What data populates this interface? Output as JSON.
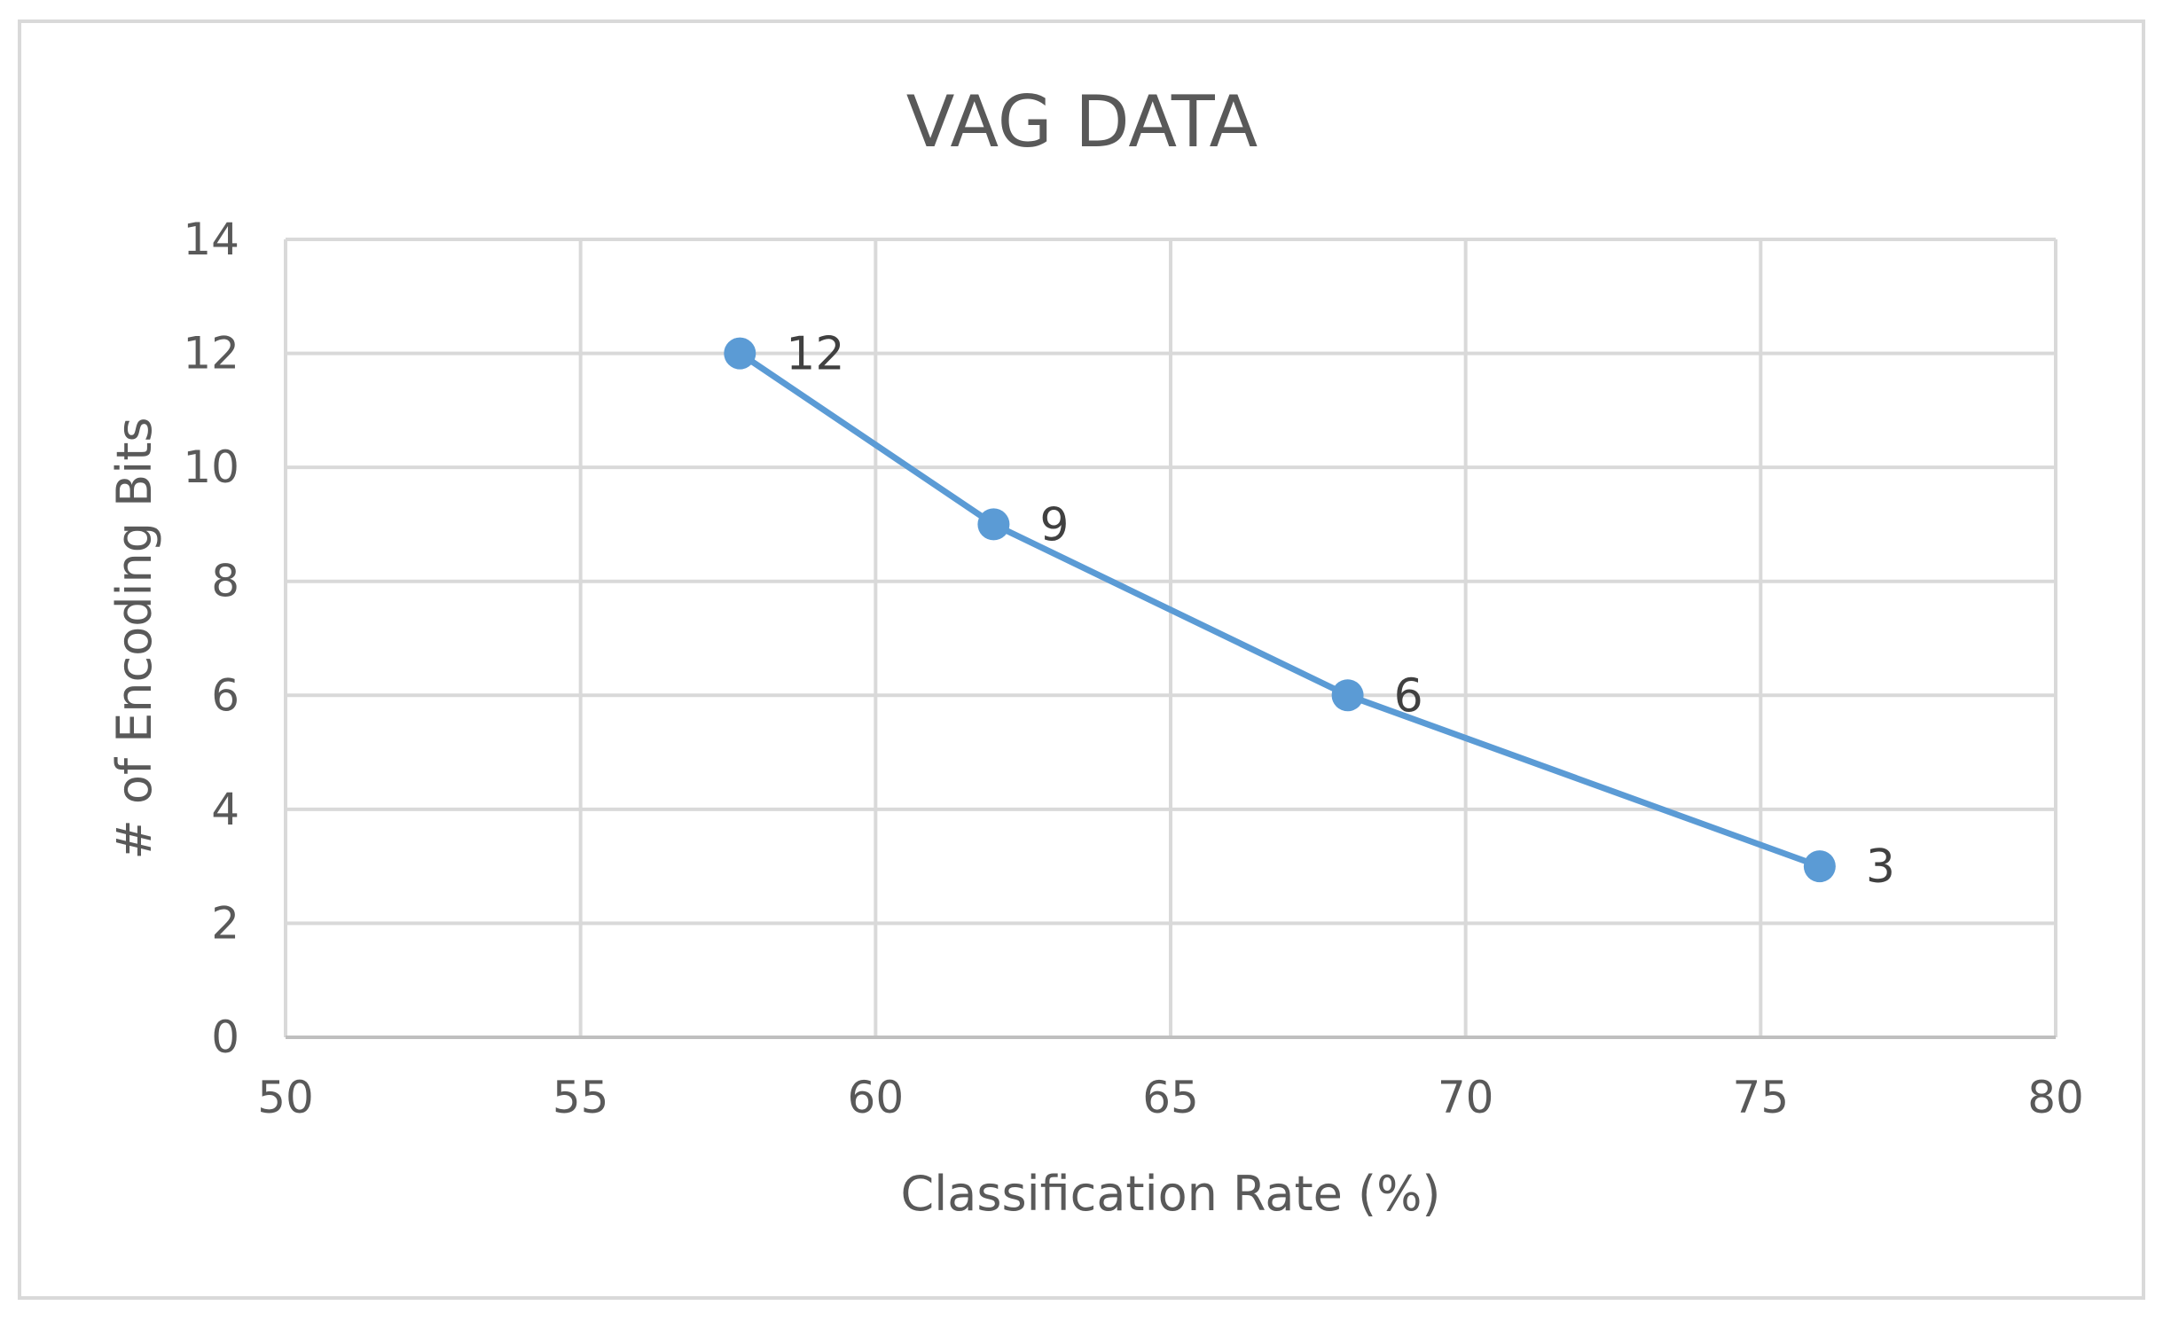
{
  "chart_data": {
    "type": "scatter",
    "title": "VAG DATA",
    "xlabel": "Classification Rate (%)",
    "ylabel": "# of Encoding Bits",
    "xlim": [
      50,
      80
    ],
    "ylim": [
      0,
      14
    ],
    "xticks": [
      50,
      55,
      60,
      65,
      70,
      75,
      80
    ],
    "yticks": [
      0,
      2,
      4,
      6,
      8,
      10,
      12,
      14
    ],
    "grid": true,
    "series": [
      {
        "name": "VAG DATA",
        "color": "#5b9bd5",
        "line": true,
        "x": [
          57.7,
          62.0,
          68.0,
          76.0
        ],
        "y": [
          12,
          9,
          6,
          3
        ],
        "labels": [
          "12",
          "9",
          "6",
          "3"
        ]
      }
    ]
  }
}
